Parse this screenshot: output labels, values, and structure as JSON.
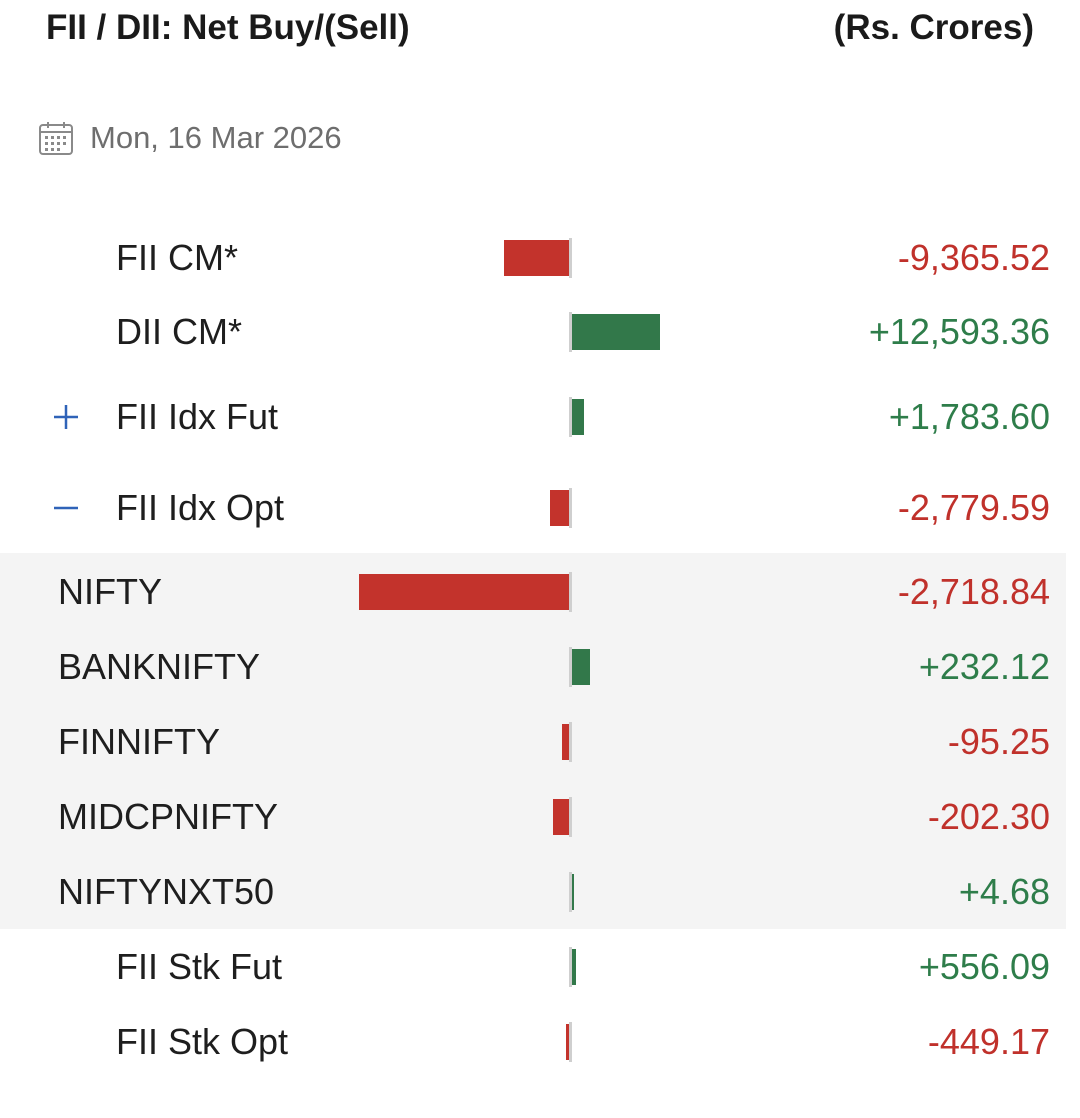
{
  "header": {
    "title": "FII / DII: Net Buy/(Sell)",
    "units": "(Rs. Crores)"
  },
  "date": {
    "icon": "calendar-icon",
    "text": "Mon, 16 Mar 2026"
  },
  "colors": {
    "positive": "#32784a",
    "negative": "#c3332c",
    "group_bg": "#f4f4f4",
    "toggle": "#2f63b8"
  },
  "rows": [
    {
      "label": "FII CM*",
      "value": "-9,365.52",
      "amount": -9365.52
    },
    {
      "label": "DII CM*",
      "value": "+12,593.36",
      "amount": 12593.36
    },
    {
      "label": "FII Idx Fut",
      "value": "+1,783.60",
      "amount": 1783.6,
      "toggle": "+"
    },
    {
      "label": "FII Idx Opt",
      "value": "-2,779.59",
      "amount": -2779.59,
      "toggle": "−"
    },
    {
      "label": "NIFTY",
      "value": "-2,718.84",
      "amount": -2718.84
    },
    {
      "label": "BANKNIFTY",
      "value": "+232.12",
      "amount": 232.12
    },
    {
      "label": "FINNIFTY",
      "value": "-95.25",
      "amount": -95.25
    },
    {
      "label": "MIDCPNIFTY",
      "value": "-202.30",
      "amount": -202.3
    },
    {
      "label": "NIFTYNXT50",
      "value": "+4.68",
      "amount": 4.68
    },
    {
      "label": "FII Stk Fut",
      "value": "+556.09",
      "amount": 556.09
    },
    {
      "label": "FII Stk Opt",
      "value": "-449.17",
      "amount": -449.17
    }
  ]
}
